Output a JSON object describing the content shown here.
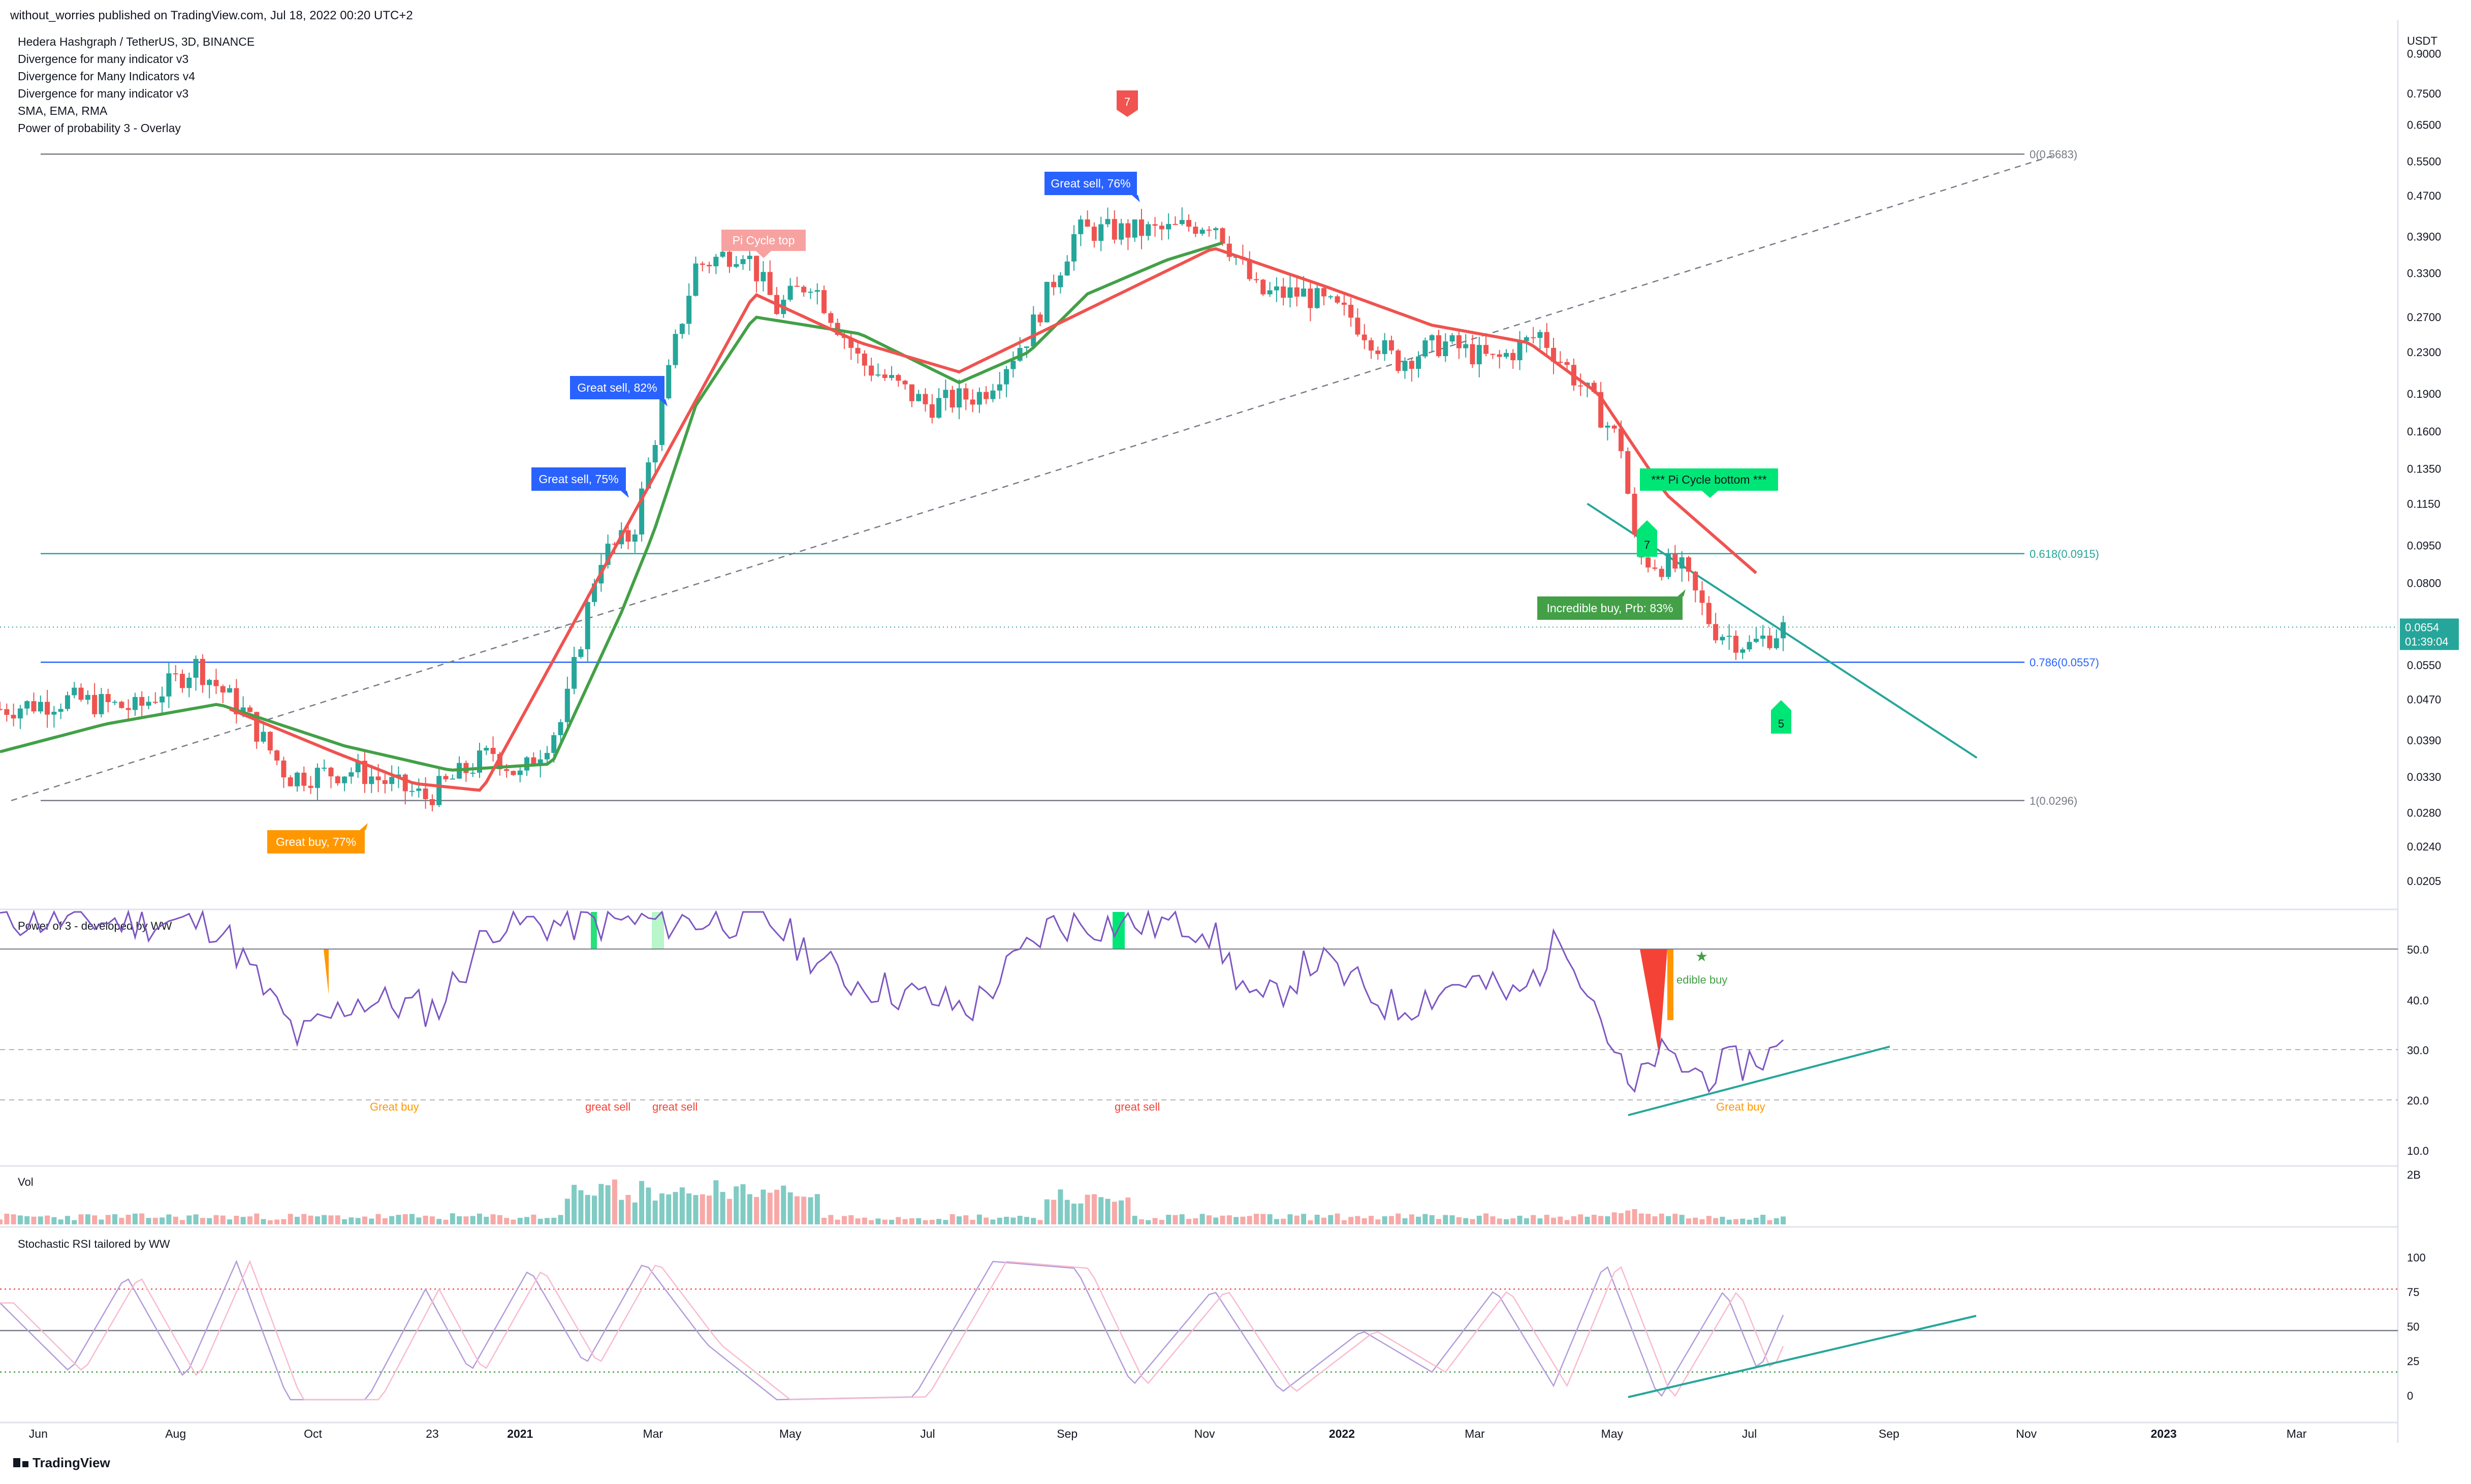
{
  "header": {
    "published": "without_worries published on TradingView.com, Jul 18, 2022 00:20 UTC+2"
  },
  "legend": {
    "symbol": "Hedera Hashgraph / TetherUS, 3D, BINANCE",
    "indicators": [
      "Divergence for many indicator v3",
      "Divergence for Many Indicators v4",
      "Divergence for many indicator v3",
      "SMA, EMA, RMA",
      "Power of probability 3 - Overlay"
    ]
  },
  "price_axis": {
    "currency": "USDT",
    "ticks": [
      "0.9000",
      "0.7500",
      "0.6500",
      "0.5500",
      "0.4700",
      "0.3900",
      "0.3300",
      "0.2700",
      "0.2300",
      "0.1900",
      "0.1600",
      "0.1350",
      "0.1150",
      "0.0950",
      "0.0800",
      "0.0550",
      "0.0470",
      "0.0390",
      "0.0330",
      "0.0280",
      "0.0240",
      "0.0205"
    ],
    "last_price": "0.0654",
    "countdown": "01:39:04",
    "last_price_color": "#26a69a"
  },
  "time_axis": {
    "labels": [
      "Jun",
      "Aug",
      "Oct",
      "23",
      "2021",
      "Mar",
      "May",
      "Jul",
      "Sep",
      "Nov",
      "2022",
      "Mar",
      "May",
      "Jul",
      "Sep",
      "Nov",
      "2023",
      "Mar"
    ]
  },
  "fib_levels": [
    {
      "label": "0(0.5683)",
      "price": 0.5683,
      "color": "#787b86"
    },
    {
      "label": "0.618(0.0915)",
      "price": 0.0915,
      "color": "#26a69a"
    },
    {
      "label": "0.786(0.0557)",
      "price": 0.0557,
      "color": "#2962ff"
    },
    {
      "label": "1(0.0296)",
      "price": 0.0296,
      "color": "#787b86"
    }
  ],
  "annotations": {
    "top_marker": "7",
    "great_sell_76": "Great sell, 76%",
    "pi_cycle_top": "Pi Cycle top",
    "great_sell_82": "Great sell, 82%",
    "great_sell_75": "Great sell, 75%",
    "great_buy_77": "Great buy,  77%",
    "pi_cycle_bottom": "*** Pi Cycle bottom ***",
    "incredible_buy": "Incredible buy, Prb: 83%",
    "marker_7_green": "7",
    "marker_5_green": "5"
  },
  "power3_panel": {
    "title": "Power of 3 - developed by WW",
    "ticks": [
      "50.0",
      "40.0",
      "30.0",
      "20.0",
      "10.0"
    ],
    "labels": {
      "great_buy_left": "Great buy",
      "great_sell_1": "great sell",
      "great_sell_2": "great sell",
      "great_sell_3": "great sell",
      "incredible_buy": "edible buy",
      "great_buy_right": "Great buy"
    }
  },
  "volume_panel": {
    "title": "Vol",
    "tick": "2B"
  },
  "stoch_panel": {
    "title": "Stochastic RSI tailored by WW",
    "ticks": [
      "100",
      "75",
      "50",
      "25",
      "0"
    ]
  },
  "footer": {
    "brand": "TradingView"
  },
  "chart_data": {
    "type": "candlestick",
    "symbol": "HBAR/USDT",
    "interval": "3D",
    "scale": "log",
    "x_range": [
      "2020-05-15",
      "2023-04-15"
    ],
    "y_range": [
      0.018,
      1.0
    ],
    "price_keypoints": [
      {
        "date": "2020-05-15",
        "price": 0.045
      },
      {
        "date": "2020-06-15",
        "price": 0.047
      },
      {
        "date": "2020-07-15",
        "price": 0.045
      },
      {
        "date": "2020-08-10",
        "price": 0.055
      },
      {
        "date": "2020-09-01",
        "price": 0.044
      },
      {
        "date": "2020-09-20",
        "price": 0.033
      },
      {
        "date": "2020-10-20",
        "price": 0.034
      },
      {
        "date": "2020-11-20",
        "price": 0.03
      },
      {
        "date": "2020-12-20",
        "price": 0.037
      },
      {
        "date": "2021-01-01",
        "price": 0.033
      },
      {
        "date": "2021-01-20",
        "price": 0.043
      },
      {
        "date": "2021-02-05",
        "price": 0.09
      },
      {
        "date": "2021-02-20",
        "price": 0.1
      },
      {
        "date": "2021-03-01",
        "price": 0.15
      },
      {
        "date": "2021-03-12",
        "price": 0.25
      },
      {
        "date": "2021-03-20",
        "price": 0.34
      },
      {
        "date": "2021-04-10",
        "price": 0.37
      },
      {
        "date": "2021-04-25",
        "price": 0.28
      },
      {
        "date": "2021-05-10",
        "price": 0.32
      },
      {
        "date": "2021-06-01",
        "price": 0.22
      },
      {
        "date": "2021-07-01",
        "price": 0.18
      },
      {
        "date": "2021-07-25",
        "price": 0.19
      },
      {
        "date": "2021-08-15",
        "price": 0.25
      },
      {
        "date": "2021-09-05",
        "price": 0.4
      },
      {
        "date": "2021-09-15",
        "price": 0.4
      },
      {
        "date": "2021-10-15",
        "price": 0.4
      },
      {
        "date": "2021-11-05",
        "price": 0.42
      },
      {
        "date": "2021-11-25",
        "price": 0.3
      },
      {
        "date": "2021-12-15",
        "price": 0.3
      },
      {
        "date": "2022-01-05",
        "price": 0.27
      },
      {
        "date": "2022-01-25",
        "price": 0.22
      },
      {
        "date": "2022-02-15",
        "price": 0.24
      },
      {
        "date": "2022-03-10",
        "price": 0.22
      },
      {
        "date": "2022-03-30",
        "price": 0.25
      },
      {
        "date": "2022-04-20",
        "price": 0.19
      },
      {
        "date": "2022-05-05",
        "price": 0.15
      },
      {
        "date": "2022-05-12",
        "price": 0.09
      },
      {
        "date": "2022-06-01",
        "price": 0.085
      },
      {
        "date": "2022-06-15",
        "price": 0.065
      },
      {
        "date": "2022-07-01",
        "price": 0.06
      },
      {
        "date": "2022-07-17",
        "price": 0.0654
      }
    ],
    "green_ma_keypoints": [
      {
        "date": "2020-05-15",
        "price": 0.037
      },
      {
        "date": "2020-07-01",
        "price": 0.042
      },
      {
        "date": "2020-08-20",
        "price": 0.046
      },
      {
        "date": "2020-10-15",
        "price": 0.038
      },
      {
        "date": "2020-12-01",
        "price": 0.034
      },
      {
        "date": "2021-01-15",
        "price": 0.035
      },
      {
        "date": "2021-02-15",
        "price": 0.07
      },
      {
        "date": "2021-03-01",
        "price": 0.1
      },
      {
        "date": "2021-03-20",
        "price": 0.18
      },
      {
        "date": "2021-04-15",
        "price": 0.27
      },
      {
        "date": "2021-06-01",
        "price": 0.25
      },
      {
        "date": "2021-07-15",
        "price": 0.2
      },
      {
        "date": "2021-08-15",
        "price": 0.23
      },
      {
        "date": "2021-09-10",
        "price": 0.3
      },
      {
        "date": "2021-10-15",
        "price": 0.35
      },
      {
        "date": "2021-11-10",
        "price": 0.38
      }
    ],
    "red_ma_keypoints": [
      {
        "date": "2020-08-25",
        "price": 0.045
      },
      {
        "date": "2020-10-10",
        "price": 0.037
      },
      {
        "date": "2020-11-15",
        "price": 0.032
      },
      {
        "date": "2020-12-15",
        "price": 0.031
      },
      {
        "date": "2021-04-15",
        "price": 0.3
      },
      {
        "date": "2021-06-01",
        "price": 0.24
      },
      {
        "date": "2021-07-15",
        "price": 0.21
      },
      {
        "date": "2021-11-05",
        "price": 0.37
      },
      {
        "date": "2021-12-25",
        "price": 0.31
      },
      {
        "date": "2022-02-10",
        "price": 0.26
      },
      {
        "date": "2022-03-25",
        "price": 0.24
      },
      {
        "date": "2022-04-25",
        "price": 0.19
      },
      {
        "date": "2022-05-25",
        "price": 0.12
      },
      {
        "date": "2022-07-05",
        "price": 0.083
      }
    ],
    "diagonal_fib_line": {
      "from": {
        "date": "2020-05-20",
        "price": 0.0296
      },
      "to": {
        "date": "2022-11-15",
        "price": 0.5683
      }
    },
    "downtrend_line": {
      "from": {
        "date": "2022-04-20",
        "price": 0.115
      },
      "to": {
        "date": "2022-10-10",
        "price": 0.036
      }
    },
    "power3": {
      "color": "#7e57c2",
      "keypoints": [
        {
          "date": "2020-05-15",
          "value": 56
        },
        {
          "date": "2020-08-20",
          "value": 55
        },
        {
          "date": "2020-09-12",
          "value": 40
        },
        {
          "date": "2020-09-25",
          "value": 32
        },
        {
          "date": "2020-10-20",
          "value": 40
        },
        {
          "date": "2020-11-25",
          "value": 38
        },
        {
          "date": "2020-12-20",
          "value": 55
        },
        {
          "date": "2021-01-20",
          "value": 55
        },
        {
          "date": "2021-04-20",
          "value": 56
        },
        {
          "date": "2021-05-25",
          "value": 44
        },
        {
          "date": "2021-07-20",
          "value": 38
        },
        {
          "date": "2021-08-25",
          "value": 55
        },
        {
          "date": "2021-11-01",
          "value": 55
        },
        {
          "date": "2021-11-25",
          "value": 38
        },
        {
          "date": "2021-12-20",
          "value": 48
        },
        {
          "date": "2022-01-25",
          "value": 38
        },
        {
          "date": "2022-02-25",
          "value": 44
        },
        {
          "date": "2022-03-20",
          "value": 40
        },
        {
          "date": "2022-04-10",
          "value": 53
        },
        {
          "date": "2022-04-25",
          "value": 38
        },
        {
          "date": "2022-05-10",
          "value": 20
        },
        {
          "date": "2022-05-20",
          "value": 29
        },
        {
          "date": "2022-06-10",
          "value": 25
        },
        {
          "date": "2022-06-25",
          "value": 27
        },
        {
          "date": "2022-07-17",
          "value": 30
        }
      ],
      "levels": [
        50,
        30,
        20
      ]
    },
    "stoch_rsi": {
      "keypoints": [
        {
          "date": "2020-05-15",
          "value": 70
        },
        {
          "date": "2020-06-15",
          "value": 20
        },
        {
          "date": "2020-07-10",
          "value": 90
        },
        {
          "date": "2020-08-05",
          "value": 15
        },
        {
          "date": "2020-08-28",
          "value": 100
        },
        {
          "date": "2020-09-20",
          "value": 0
        },
        {
          "date": "2020-10-25",
          "value": 0
        },
        {
          "date": "2020-11-20",
          "value": 80
        },
        {
          "date": "2020-12-10",
          "value": 20
        },
        {
          "date": "2021-01-05",
          "value": 95
        },
        {
          "date": "2021-01-30",
          "value": 25
        },
        {
          "date": "2021-02-25",
          "value": 100
        },
        {
          "date": "2021-03-25",
          "value": 40
        },
        {
          "date": "2021-04-25",
          "value": 0
        },
        {
          "date": "2021-06-25",
          "value": 2
        },
        {
          "date": "2021-07-30",
          "value": 100
        },
        {
          "date": "2021-09-05",
          "value": 95
        },
        {
          "date": "2021-09-30",
          "value": 10
        },
        {
          "date": "2021-11-05",
          "value": 80
        },
        {
          "date": "2021-12-05",
          "value": 5
        },
        {
          "date": "2022-01-10",
          "value": 50
        },
        {
          "date": "2022-02-10",
          "value": 20
        },
        {
          "date": "2022-03-10",
          "value": 80
        },
        {
          "date": "2022-04-05",
          "value": 10
        },
        {
          "date": "2022-04-28",
          "value": 100
        },
        {
          "date": "2022-05-22",
          "value": 0
        },
        {
          "date": "2022-06-20",
          "value": 80
        },
        {
          "date": "2022-07-05",
          "value": 20
        },
        {
          "date": "2022-07-17",
          "value": 65
        }
      ],
      "levels": [
        80,
        50,
        20
      ]
    }
  }
}
